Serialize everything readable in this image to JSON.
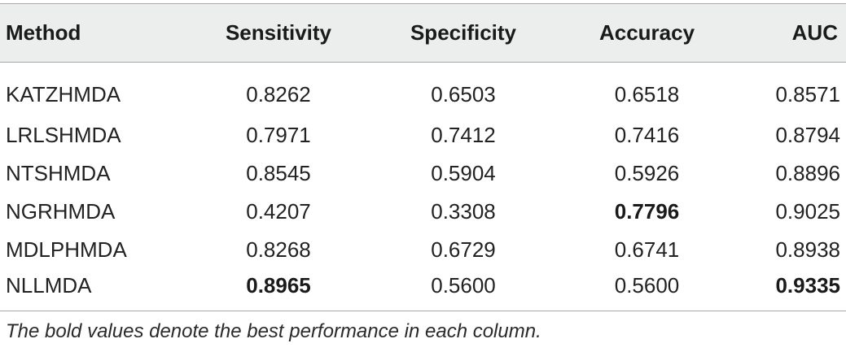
{
  "table": {
    "headers": [
      "Method",
      "Sensitivity",
      "Specificity",
      "Accuracy",
      "AUC"
    ],
    "rows": [
      {
        "method": "KATZHMDA",
        "sensitivity": "0.8262",
        "specificity": "0.6503",
        "accuracy": "0.6518",
        "auc": "0.8571"
      },
      {
        "method": "LRLSHMDA",
        "sensitivity": "0.7971",
        "specificity": "0.7412",
        "accuracy": "0.7416",
        "auc": "0.8794"
      },
      {
        "method": "NTSHMDA",
        "sensitivity": "0.8545",
        "specificity": "0.5904",
        "accuracy": "0.5926",
        "auc": "0.8896"
      },
      {
        "method": "NGRHMDA",
        "sensitivity": "0.4207",
        "specificity": "0.3308",
        "accuracy": "0.7796",
        "auc": "0.9025"
      },
      {
        "method": "MDLPHMDA",
        "sensitivity": "0.8268",
        "specificity": "0.6729",
        "accuracy": "0.6741",
        "auc": "0.8938"
      },
      {
        "method": "NLLMDA",
        "sensitivity": "0.8965",
        "specificity": "0.5600",
        "accuracy": "0.5600",
        "auc": "0.9335"
      }
    ],
    "bold_cells": [
      {
        "row": 3,
        "column": "accuracy"
      },
      {
        "row": 5,
        "column": "sensitivity"
      },
      {
        "row": 5,
        "column": "auc"
      }
    ]
  },
  "footnote": "The bold values denote the best performance in each column."
}
